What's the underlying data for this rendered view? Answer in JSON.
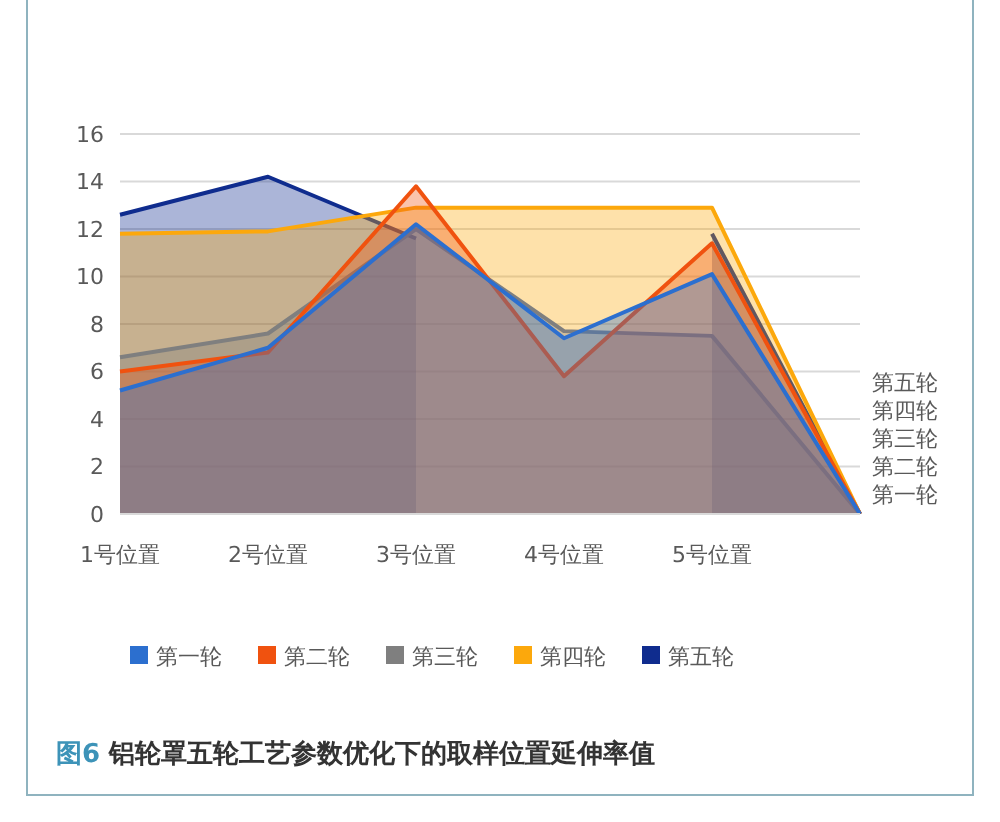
{
  "chart_data": {
    "type": "area",
    "title": "图6 铝轮罩五轮工艺参数优化下的取样位置延伸率值",
    "categories": [
      "1号位置",
      "2号位置",
      "3号位置",
      "4号位置",
      "5号位置",
      null
    ],
    "series": [
      {
        "name": "第一轮",
        "color": "#2c6fcf",
        "values": [
          5.2,
          7.0,
          12.2,
          7.4,
          10.1,
          0
        ]
      },
      {
        "name": "第二轮",
        "color": "#f0520f",
        "values": [
          6.0,
          6.8,
          13.8,
          5.8,
          11.4,
          0
        ]
      },
      {
        "name": "第三轮",
        "color": "#7f7f7f",
        "values": [
          6.6,
          7.6,
          12.0,
          7.7,
          7.5,
          0
        ]
      },
      {
        "name": "第四轮",
        "color": "#fca80c",
        "values": [
          11.8,
          11.9,
          12.9,
          12.9,
          12.9,
          0
        ]
      },
      {
        "name": "第五轮",
        "color": "#0f2c8e",
        "values": [
          12.6,
          14.2,
          11.6,
          null,
          11.8,
          0
        ]
      }
    ],
    "ylim": [
      0,
      16
    ],
    "yticks": [
      0,
      2,
      4,
      6,
      8,
      10,
      12,
      14,
      16
    ],
    "grid": "y",
    "legend": "bottom"
  }
}
